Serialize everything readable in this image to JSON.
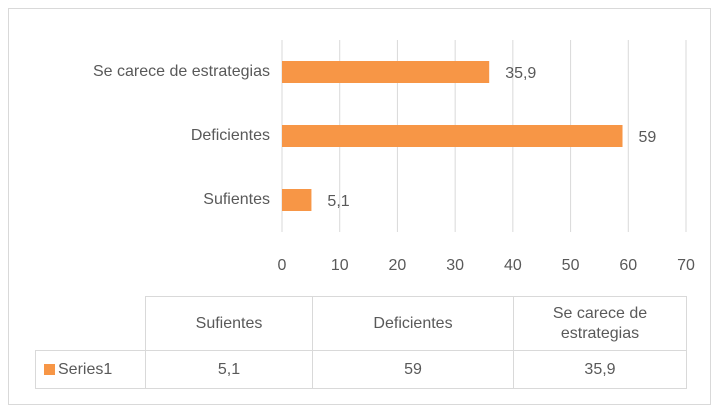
{
  "chart_data": {
    "type": "bar",
    "orientation": "horizontal",
    "categories": [
      "Sufientes",
      "Deficientes",
      "Se carece de estrategias"
    ],
    "series": [
      {
        "name": "Series1",
        "color": "#f79646",
        "values": [
          5.1,
          59,
          35.9
        ],
        "value_labels": [
          "5,1",
          "59",
          "35,9"
        ]
      }
    ],
    "xlim": [
      0,
      70
    ],
    "xticks": [
      0,
      10,
      20,
      30,
      40,
      50,
      60,
      70
    ],
    "grid": true,
    "data_table": true
  }
}
